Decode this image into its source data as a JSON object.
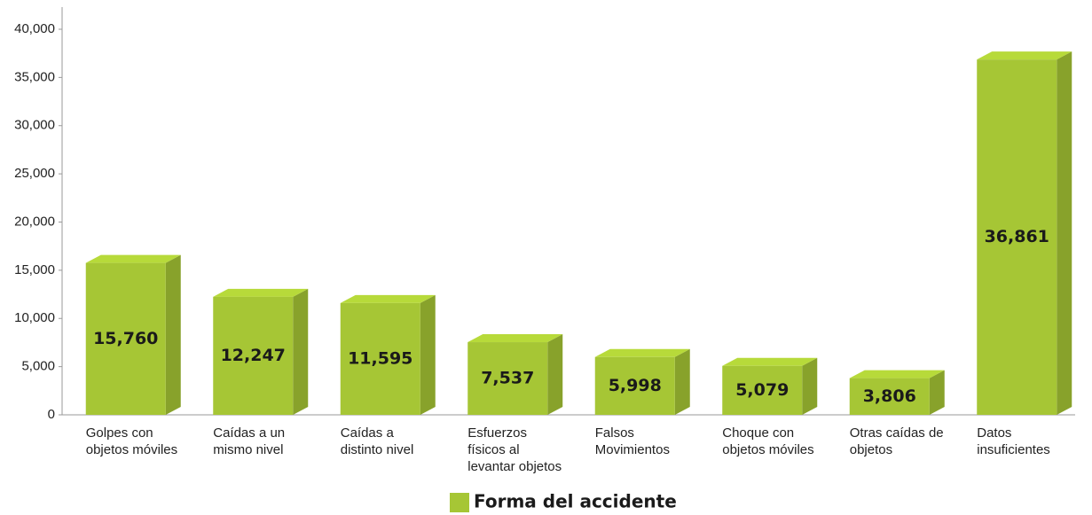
{
  "chart_data": {
    "type": "bar3d",
    "categories": [
      [
        "Golpes con",
        "objetos móviles"
      ],
      [
        "Caídas a un",
        "mismo nivel"
      ],
      [
        "Caídas a",
        "distinto nivel"
      ],
      [
        "Esfuerzos",
        "físicos al",
        "levantar objetos"
      ],
      [
        "Falsos",
        "Movimientos"
      ],
      [
        "Choque con",
        "objetos móviles"
      ],
      [
        "Otras caídas de",
        "objetos"
      ],
      [
        "Datos",
        "insuficientes"
      ]
    ],
    "series": [
      {
        "name": "Forma del accidente",
        "color": "#a6c635",
        "values": [
          15760,
          12247,
          11595,
          7537,
          5998,
          5079,
          3806,
          36861
        ],
        "value_labels": [
          "15,760",
          "12,247",
          "11,595",
          "7,537",
          "5,998",
          "5,079",
          "3,806",
          "36,861"
        ]
      }
    ],
    "ylim": [
      0,
      40000
    ],
    "yticks": [
      0,
      {
        "value": 5000,
        "label": "5,000"
      },
      {
        "value": 10000,
        "label": "10,000"
      },
      {
        "value": 15000,
        "label": "15,000"
      },
      {
        "value": 20000,
        "label": "20,000"
      },
      {
        "value": 25000,
        "label": "25,000"
      },
      {
        "value": 30000,
        "label": "30,000"
      },
      {
        "value": 35000,
        "label": "35,000"
      },
      {
        "value": 40000,
        "label": "40,000"
      }
    ],
    "legend": "bottom"
  }
}
